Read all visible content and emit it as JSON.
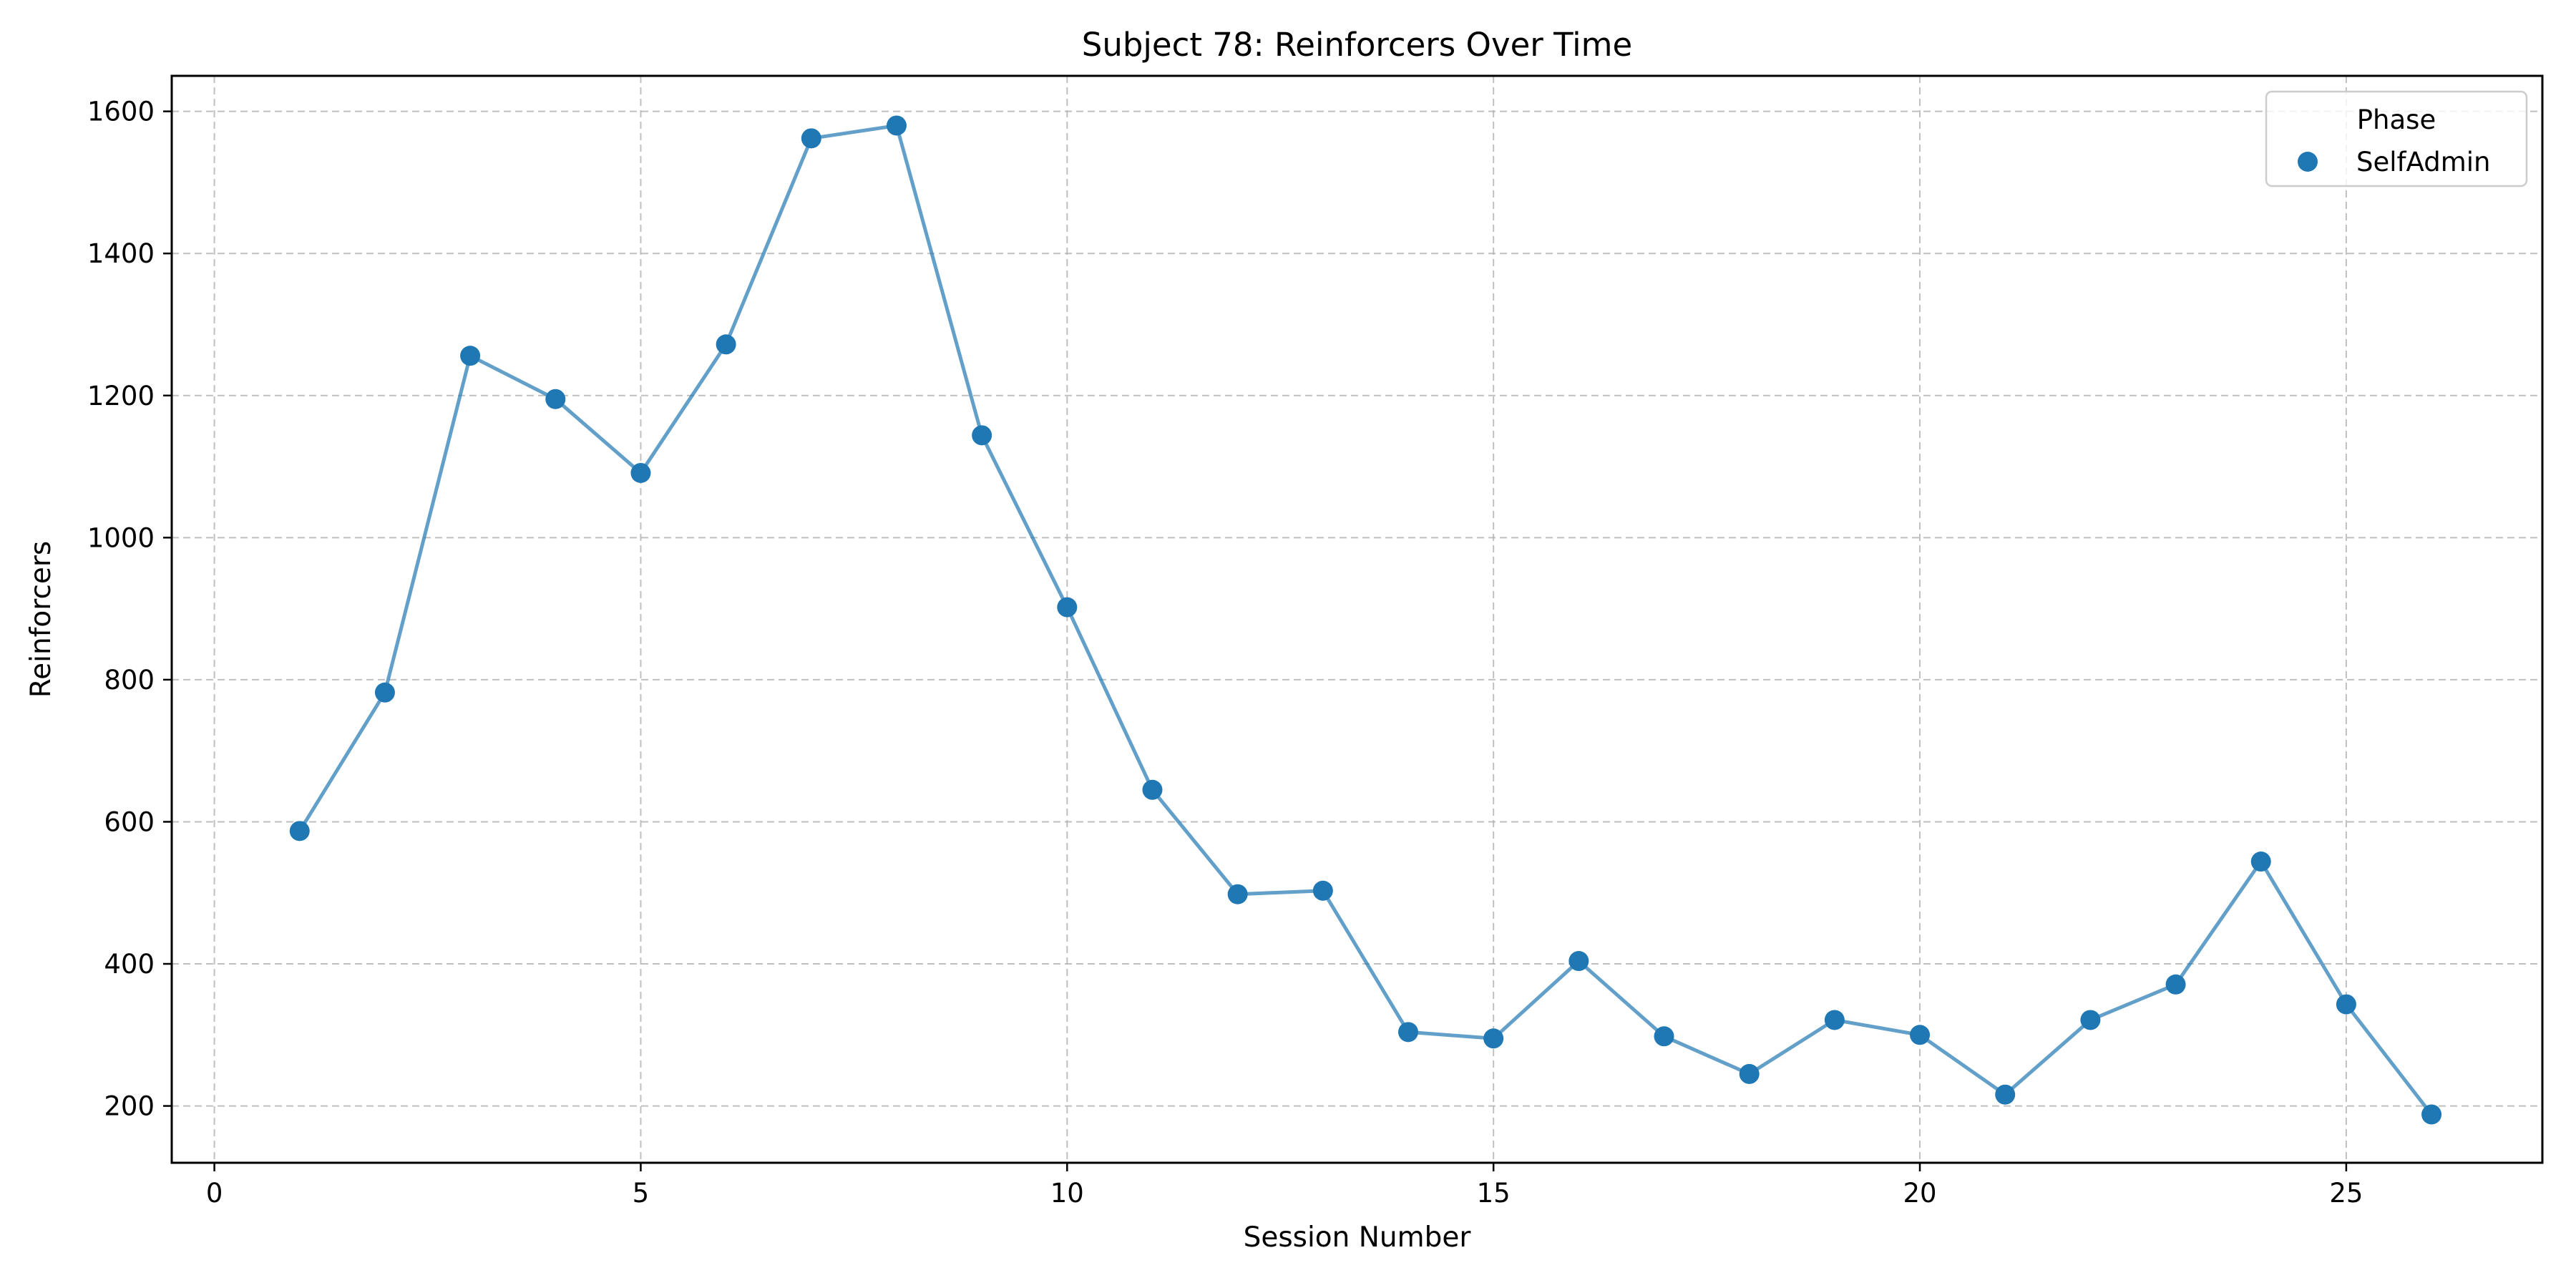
{
  "chart_data": {
    "type": "line",
    "title": "Subject 78: Reinforcers Over Time",
    "xlabel": "Session Number",
    "ylabel": "Reinforcers",
    "xlim": [
      -0.5,
      27.3
    ],
    "ylim": [
      120,
      1650
    ],
    "x_ticks": [
      0,
      5,
      10,
      15,
      20,
      25
    ],
    "y_ticks": [
      200,
      400,
      600,
      800,
      1000,
      1200,
      1400,
      1600
    ],
    "grid": true,
    "legend": {
      "title": "Phase",
      "placement": "top-right",
      "entries": [
        "SelfAdmin"
      ]
    },
    "series": [
      {
        "name": "SelfAdmin",
        "color": "#1f77b4",
        "x": [
          1,
          2,
          3,
          4,
          5,
          6,
          7,
          8,
          9,
          10,
          11,
          12,
          13,
          14,
          15,
          16,
          17,
          18,
          19,
          20,
          21,
          22,
          23,
          24,
          25,
          26
        ],
        "y": [
          587,
          782,
          1256,
          1195,
          1091,
          1272,
          1562,
          1580,
          1144,
          902,
          645,
          498,
          503,
          304,
          295,
          404,
          298,
          245,
          321,
          300,
          216,
          321,
          371,
          544,
          343,
          188
        ]
      }
    ]
  }
}
